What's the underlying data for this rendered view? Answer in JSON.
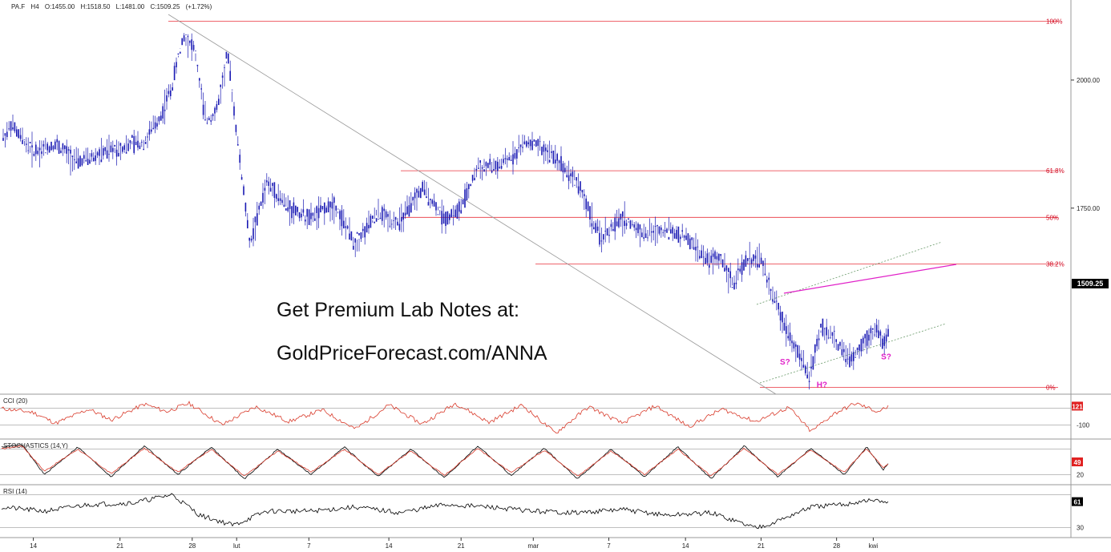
{
  "header": {
    "symbol": "PA.F",
    "timeframe": "H4",
    "open": "O:1455.00",
    "high": "H:1518.50",
    "low": "L:1481.00",
    "close": "C:1509.25",
    "change": "(+1.72%)"
  },
  "promo": {
    "line1": "Get Premium Lab Notes at:",
    "line2": "GoldPriceForecast.com/ANNA"
  },
  "colors": {
    "candles": "#1a1ab4",
    "fib": "#e8323c",
    "neckline": "#e020c8",
    "channel": "#6a9a6a",
    "cci": "#d93a2a",
    "stoch_k": "#000000",
    "stoch_d": "#d93a2a",
    "rsi": "#000000",
    "last_price_bg": "#000000",
    "indicator_tag_bg": "#e02020"
  },
  "chart_data": [
    {
      "type": "line",
      "panel": "price",
      "ylim": [
        1390,
        2150
      ],
      "y_ticks": [
        2000.0,
        1750.0
      ],
      "y_tick_labels": [
        "2000.00",
        "1750.00"
      ],
      "last_price": 1509.25,
      "last_price_label": "1509.25",
      "x_tick_labels": [
        "14",
        "21",
        "28",
        "lut",
        "7",
        "14",
        "21",
        "mar",
        "7",
        "14",
        "21",
        "28",
        "kwi"
      ],
      "x_tick_positions": [
        0.03,
        0.108,
        0.173,
        0.213,
        0.278,
        0.35,
        0.415,
        0.48,
        0.548,
        0.617,
        0.685,
        0.753,
        0.786
      ],
      "close_path": {
        "x": [
          0.0,
          0.01,
          0.03,
          0.05,
          0.07,
          0.09,
          0.11,
          0.13,
          0.145,
          0.155,
          0.165,
          0.175,
          0.185,
          0.195,
          0.205,
          0.215,
          0.225,
          0.24,
          0.26,
          0.28,
          0.3,
          0.32,
          0.34,
          0.36,
          0.38,
          0.4,
          0.415,
          0.43,
          0.45,
          0.475,
          0.5,
          0.52,
          0.54,
          0.56,
          0.58,
          0.6,
          0.62,
          0.635,
          0.65,
          0.66,
          0.672,
          0.685,
          0.695,
          0.705,
          0.718,
          0.728,
          0.74,
          0.752,
          0.765,
          0.778,
          0.79,
          0.795,
          0.8
        ],
        "y": [
          1880,
          1910,
          1860,
          1875,
          1840,
          1855,
          1870,
          1880,
          1930,
          1990,
          2090,
          2060,
          1920,
          1940,
          2050,
          1860,
          1680,
          1800,
          1750,
          1730,
          1760,
          1680,
          1740,
          1720,
          1790,
          1730,
          1750,
          1830,
          1830,
          1880,
          1850,
          1800,
          1690,
          1730,
          1700,
          1710,
          1690,
          1650,
          1650,
          1600,
          1650,
          1650,
          1580,
          1530,
          1470,
          1420,
          1520,
          1490,
          1450,
          1490,
          1520,
          1480,
          1510
        ]
      },
      "fib_levels": [
        {
          "label": "100%",
          "value": 2115
        },
        {
          "label": "61.8%",
          "value": 1823
        },
        {
          "label": "50%",
          "value": 1732
        },
        {
          "label": "38.2%",
          "value": 1641
        },
        {
          "label": "0%",
          "value": 1400
        }
      ],
      "annotations": [
        {
          "label": "S?",
          "x": 0.702,
          "y": 1445
        },
        {
          "label": "H?",
          "x": 0.735,
          "y": 1400
        },
        {
          "label": "S?",
          "x": 0.793,
          "y": 1455
        }
      ]
    },
    {
      "type": "line",
      "panel": "cci",
      "title": "CCI (20)",
      "ylim": [
        -250,
        250
      ],
      "reference_lines": [
        100,
        -100
      ],
      "y_tick_labels": [
        "-100"
      ],
      "last_value_label": "121",
      "series": [
        {
          "x": [
            0.0,
            0.03,
            0.05,
            0.08,
            0.1,
            0.13,
            0.15,
            0.17,
            0.2,
            0.23,
            0.26,
            0.29,
            0.32,
            0.35,
            0.38,
            0.41,
            0.44,
            0.47,
            0.5,
            0.53,
            0.56,
            0.59,
            0.62,
            0.65,
            0.68,
            0.71,
            0.73,
            0.75,
            0.77,
            0.79,
            0.8
          ],
          "values": [
            100,
            50,
            -80,
            90,
            -40,
            150,
            60,
            160,
            -100,
            120,
            -60,
            80,
            -150,
            140,
            -90,
            160,
            -70,
            140,
            -200,
            120,
            -80,
            130,
            -120,
            90,
            -60,
            110,
            -180,
            30,
            160,
            60,
            121
          ]
        }
      ]
    },
    {
      "type": "line",
      "panel": "stochastics",
      "title": "STOCHASTICS (14,Y)",
      "ylim": [
        0,
        100
      ],
      "reference_lines": [
        80,
        20
      ],
      "y_tick_labels": [
        "20"
      ],
      "last_value_labels": [
        "49"
      ],
      "series": [
        {
          "x": [
            0.0,
            0.02,
            0.04,
            0.07,
            0.1,
            0.13,
            0.16,
            0.19,
            0.22,
            0.25,
            0.28,
            0.31,
            0.34,
            0.37,
            0.4,
            0.43,
            0.46,
            0.49,
            0.52,
            0.55,
            0.58,
            0.61,
            0.64,
            0.67,
            0.7,
            0.73,
            0.76,
            0.78,
            0.795,
            0.8
          ],
          "values": [
            85,
            90,
            20,
            85,
            15,
            88,
            20,
            85,
            10,
            80,
            20,
            85,
            15,
            80,
            12,
            88,
            18,
            82,
            10,
            80,
            15,
            85,
            10,
            88,
            15,
            82,
            20,
            85,
            30,
            49
          ]
        },
        {
          "x": [
            0.0,
            0.02,
            0.04,
            0.07,
            0.1,
            0.13,
            0.16,
            0.19,
            0.22,
            0.25,
            0.28,
            0.31,
            0.34,
            0.37,
            0.4,
            0.43,
            0.46,
            0.49,
            0.52,
            0.55,
            0.58,
            0.61,
            0.64,
            0.67,
            0.7,
            0.73,
            0.76,
            0.78,
            0.795,
            0.8
          ],
          "values": [
            80,
            88,
            28,
            80,
            22,
            82,
            26,
            80,
            16,
            76,
            26,
            80,
            20,
            76,
            18,
            82,
            24,
            78,
            16,
            76,
            20,
            80,
            16,
            82,
            20,
            78,
            26,
            82,
            36,
            45
          ]
        }
      ]
    },
    {
      "type": "line",
      "panel": "rsi",
      "title": "RSI (14)",
      "ylim": [
        20,
        80
      ],
      "reference_lines": [
        70,
        30
      ],
      "y_tick_labels": [
        "30"
      ],
      "last_value_label": "61",
      "series": [
        {
          "x": [
            0.0,
            0.04,
            0.08,
            0.12,
            0.155,
            0.18,
            0.21,
            0.24,
            0.28,
            0.32,
            0.36,
            0.4,
            0.44,
            0.48,
            0.52,
            0.56,
            0.6,
            0.64,
            0.68,
            0.7,
            0.73,
            0.76,
            0.78,
            0.8
          ],
          "values": [
            55,
            50,
            58,
            60,
            70,
            45,
            33,
            50,
            50,
            55,
            48,
            58,
            55,
            50,
            48,
            52,
            45,
            48,
            30,
            38,
            55,
            58,
            63,
            61
          ]
        }
      ]
    }
  ]
}
